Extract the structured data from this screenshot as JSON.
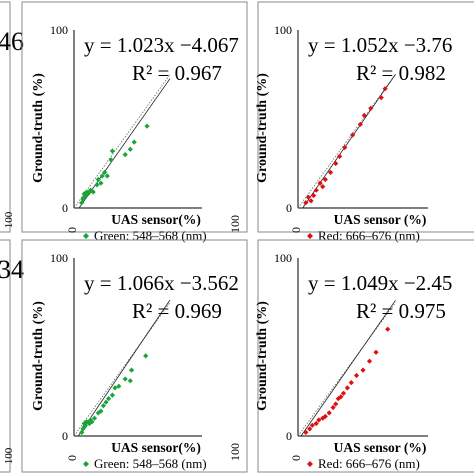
{
  "chart_data": [
    {
      "type": "scatter",
      "panel": "top-left",
      "equation": "y = 1.023x −4.067",
      "r2": "R² = 0.967",
      "xlabel": "UAS sensor(%)",
      "ylabel": "Ground-truth (%)",
      "legend": "Green: 548–568 (nm)",
      "color": "#1aa53a",
      "x_ticks": [
        "0",
        "100"
      ],
      "y_ticks": [
        "0",
        "100"
      ],
      "xlim": [
        0,
        100
      ],
      "ylim": [
        0,
        100
      ],
      "fit": {
        "slope": 1.023,
        "intercept": -4.067
      },
      "points": [
        [
          6,
          3
        ],
        [
          7,
          5
        ],
        [
          8,
          6
        ],
        [
          8,
          8
        ],
        [
          9,
          7
        ],
        [
          10,
          9
        ],
        [
          11,
          8
        ],
        [
          12,
          9
        ],
        [
          13,
          10
        ],
        [
          15,
          9
        ],
        [
          18,
          13
        ],
        [
          19,
          16
        ],
        [
          21,
          14
        ],
        [
          22,
          18
        ],
        [
          24,
          20
        ],
        [
          26,
          18
        ],
        [
          29,
          27
        ],
        [
          30,
          32
        ],
        [
          40,
          30
        ],
        [
          44,
          33
        ],
        [
          47,
          37
        ],
        [
          57,
          46
        ]
      ]
    },
    {
      "type": "scatter",
      "panel": "top-right",
      "equation": "y = 1.052x −3.76",
      "r2": "R² = 0.982",
      "xlabel": "UAS sensor (%)",
      "ylabel": "Ground-truth (%)",
      "legend": "Red: 666–676 (nm)",
      "color": "#dd1111",
      "x_ticks": [
        "0",
        "100"
      ],
      "y_ticks": [
        "0",
        "100"
      ],
      "xlim": [
        0,
        100
      ],
      "ylim": [
        0,
        100
      ],
      "fit": {
        "slope": 1.052,
        "intercept": -3.76
      },
      "points": [
        [
          6,
          3
        ],
        [
          8,
          6
        ],
        [
          10,
          4
        ],
        [
          12,
          7
        ],
        [
          14,
          10
        ],
        [
          17,
          14
        ],
        [
          19,
          12
        ],
        [
          21,
          16
        ],
        [
          25,
          20
        ],
        [
          29,
          25
        ],
        [
          32,
          29
        ],
        [
          36,
          34
        ],
        [
          42,
          41
        ],
        [
          48,
          47
        ],
        [
          51,
          52
        ],
        [
          56,
          56
        ],
        [
          64,
          62
        ],
        [
          67,
          67
        ]
      ]
    },
    {
      "type": "scatter",
      "panel": "bottom-left",
      "equation": "y = 1.066x −3.562",
      "r2": "R² = 0.969",
      "xlabel": "UAS sensor(%)",
      "ylabel": "Ground-truth (%)",
      "legend": "Green: 548–568 (nm)",
      "color": "#1aa53a",
      "x_ticks": [
        "0",
        "100"
      ],
      "y_ticks": [
        "0",
        "100"
      ],
      "xlim": [
        0,
        100
      ],
      "ylim": [
        0,
        100
      ],
      "fit": {
        "slope": 1.066,
        "intercept": -3.562
      },
      "points": [
        [
          6,
          2
        ],
        [
          7,
          4
        ],
        [
          8,
          5
        ],
        [
          8,
          7
        ],
        [
          9,
          6
        ],
        [
          10,
          8
        ],
        [
          12,
          7
        ],
        [
          13,
          9
        ],
        [
          14,
          8
        ],
        [
          16,
          10
        ],
        [
          19,
          13
        ],
        [
          21,
          14
        ],
        [
          23,
          17
        ],
        [
          25,
          19
        ],
        [
          27,
          21
        ],
        [
          30,
          23
        ],
        [
          32,
          27
        ],
        [
          35,
          28
        ],
        [
          40,
          32
        ],
        [
          44,
          31
        ],
        [
          45,
          37
        ],
        [
          56,
          45
        ]
      ]
    },
    {
      "type": "scatter",
      "panel": "bottom-right",
      "equation": "y = 1.049x −2.45",
      "r2": "R² = 0.975",
      "xlabel": "UAS sensor (%)",
      "ylabel": "Ground-truth (%)",
      "legend": "Red: 666–676 (nm)",
      "color": "#dd1111",
      "x_ticks": [
        "0",
        "100"
      ],
      "y_ticks": [
        "0",
        "100"
      ],
      "xlim": [
        0,
        100
      ],
      "ylim": [
        0,
        100
      ],
      "fit": {
        "slope": 1.049,
        "intercept": -2.45
      },
      "points": [
        [
          6,
          2
        ],
        [
          9,
          4
        ],
        [
          11,
          6
        ],
        [
          14,
          7
        ],
        [
          16,
          9
        ],
        [
          19,
          10
        ],
        [
          21,
          11
        ],
        [
          24,
          13
        ],
        [
          27,
          16
        ],
        [
          29,
          18
        ],
        [
          31,
          21
        ],
        [
          33,
          22
        ],
        [
          35,
          24
        ],
        [
          38,
          27
        ],
        [
          41,
          30
        ],
        [
          45,
          34
        ],
        [
          50,
          37
        ],
        [
          55,
          42
        ],
        [
          60,
          47
        ],
        [
          69,
          60
        ]
      ]
    }
  ],
  "edge_labels": {
    "top_left_number": "46",
    "bottom_left_number": "34",
    "left_ticks": [
      "100",
      "100"
    ]
  }
}
